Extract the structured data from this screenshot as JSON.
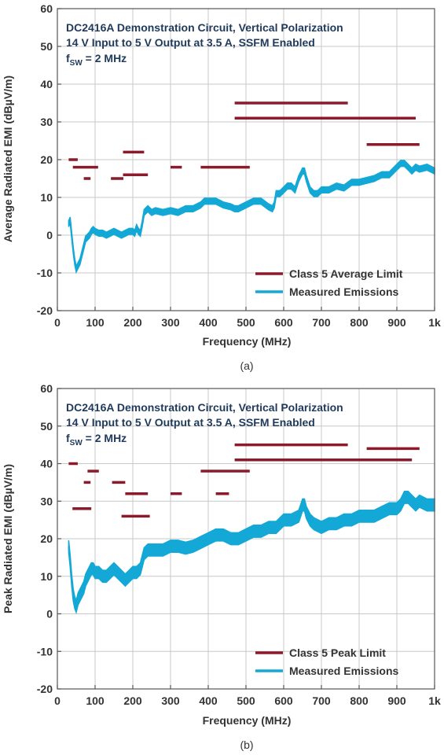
{
  "colors": {
    "limit": "#8b1a2b",
    "measured": "#13a8d6",
    "grid": "#c8c8c8",
    "axis": "#555555"
  },
  "chart_data": [
    {
      "type": "line",
      "caption": "(a)",
      "annotations": [
        "DC2416A Demonstration Circuit, Vertical Polarization",
        "14 V Input to 5 V Output at 3.5 A, SSFM Enabled",
        "f",
        "SW",
        " = 2 MHz"
      ],
      "xlabel": "Frequency (MHz)",
      "ylabel": "Average Radiated EMI (dBµV/m)",
      "xlim": [
        0,
        1000
      ],
      "ylim": [
        -20,
        60
      ],
      "xticks": [
        0,
        100,
        200,
        300,
        400,
        500,
        600,
        700,
        800,
        900,
        1000
      ],
      "xticklabels": [
        "0",
        "100",
        "200",
        "300",
        "400",
        "500",
        "600",
        "700",
        "800",
        "900",
        "1k"
      ],
      "yticks": [
        -20,
        -10,
        0,
        10,
        20,
        30,
        40,
        50,
        60
      ],
      "grid": true,
      "legend": {
        "position": "bottom-right",
        "entries": [
          "Class 5 Average Limit",
          "Measured Emissions"
        ]
      },
      "limit_segments": [
        {
          "x": [
            30,
            54
          ],
          "y": 20
        },
        {
          "x": [
            41,
            108
          ],
          "y": 18
        },
        {
          "x": [
            70,
            88
          ],
          "y": 15
        },
        {
          "x": [
            142,
            175
          ],
          "y": 15
        },
        {
          "x": [
            174,
            240
          ],
          "y": 16
        },
        {
          "x": [
            174,
            230
          ],
          "y": 22
        },
        {
          "x": [
            300,
            330
          ],
          "y": 18
        },
        {
          "x": [
            380,
            510
          ],
          "y": 18
        },
        {
          "x": [
            470,
            770
          ],
          "y": 35
        },
        {
          "x": [
            470,
            950
          ],
          "y": 31
        },
        {
          "x": [
            820,
            960
          ],
          "y": 24
        }
      ],
      "measured": {
        "band": 0.8,
        "x": [
          30,
          34,
          38,
          42,
          46,
          50,
          55,
          60,
          65,
          70,
          75,
          80,
          85,
          90,
          95,
          100,
          110,
          120,
          130,
          140,
          150,
          160,
          170,
          180,
          190,
          200,
          205,
          210,
          215,
          220,
          225,
          230,
          240,
          250,
          260,
          280,
          300,
          320,
          340,
          360,
          380,
          390,
          400,
          420,
          440,
          460,
          470,
          480,
          500,
          520,
          540,
          560,
          570,
          575,
          580,
          590,
          600,
          610,
          620,
          630,
          640,
          650,
          655,
          660,
          670,
          680,
          690,
          700,
          720,
          740,
          760,
          780,
          800,
          820,
          840,
          860,
          880,
          900,
          910,
          920,
          930,
          940,
          950,
          960,
          980,
          1000
        ],
        "y": [
          3,
          4,
          0,
          -4,
          -7,
          -9,
          -8,
          -7,
          -5,
          -3,
          -1,
          -0.5,
          0,
          1,
          1.5,
          1,
          0.5,
          0.5,
          0,
          0.5,
          1,
          0.5,
          0,
          0.5,
          1,
          1,
          0.5,
          2,
          1,
          0.5,
          3,
          6,
          7,
          6,
          6.5,
          6,
          6.5,
          6,
          7,
          7,
          8,
          9,
          9,
          9,
          8,
          7.5,
          7,
          7,
          8,
          9,
          9,
          7.5,
          7,
          8,
          11,
          11,
          12,
          13,
          13,
          12,
          15,
          17,
          17,
          15,
          12,
          11,
          11,
          12,
          12,
          13,
          12.5,
          14,
          14,
          14.5,
          15,
          16,
          16,
          18,
          19,
          19,
          18,
          17,
          18,
          17.5,
          18,
          17
        ]
      }
    },
    {
      "type": "line",
      "caption": "(b)",
      "annotations": [
        "DC2416A Demonstration Circuit, Vertical Polarization",
        "14 V Input to 5 V Output at 3.5 A, SSFM Enabled",
        "f",
        "SW",
        " = 2 MHz"
      ],
      "xlabel": "Frequency (MHz)",
      "ylabel": "Peak Radiated EMI (dBµV/m)",
      "xlim": [
        0,
        1000
      ],
      "ylim": [
        -20,
        60
      ],
      "xticks": [
        0,
        100,
        200,
        300,
        400,
        500,
        600,
        700,
        800,
        900,
        1000
      ],
      "xticklabels": [
        "0",
        "100",
        "200",
        "300",
        "400",
        "500",
        "600",
        "700",
        "800",
        "900",
        "1k"
      ],
      "yticks": [
        -20,
        -10,
        0,
        10,
        20,
        30,
        40,
        50,
        60
      ],
      "grid": true,
      "legend": {
        "position": "bottom-right",
        "entries": [
          "Class 5 Peak Limit",
          "Measured Emissions"
        ]
      },
      "limit_segments": [
        {
          "x": [
            30,
            54
          ],
          "y": 40
        },
        {
          "x": [
            80,
            110
          ],
          "y": 38
        },
        {
          "x": [
            70,
            88
          ],
          "y": 35
        },
        {
          "x": [
            145,
            180
          ],
          "y": 35
        },
        {
          "x": [
            40,
            90
          ],
          "y": 28
        },
        {
          "x": [
            180,
            240
          ],
          "y": 32
        },
        {
          "x": [
            170,
            245
          ],
          "y": 26
        },
        {
          "x": [
            300,
            330
          ],
          "y": 32
        },
        {
          "x": [
            380,
            510
          ],
          "y": 38
        },
        {
          "x": [
            420,
            455
          ],
          "y": 32
        },
        {
          "x": [
            470,
            770
          ],
          "y": 45
        },
        {
          "x": [
            470,
            940
          ],
          "y": 41
        },
        {
          "x": [
            820,
            960
          ],
          "y": 44
        }
      ],
      "measured": {
        "band": 1.6,
        "x": [
          30,
          34,
          38,
          42,
          46,
          50,
          55,
          60,
          65,
          70,
          75,
          80,
          85,
          90,
          95,
          100,
          110,
          120,
          130,
          140,
          150,
          160,
          170,
          180,
          190,
          200,
          210,
          220,
          225,
          230,
          240,
          260,
          280,
          300,
          320,
          340,
          360,
          380,
          400,
          420,
          440,
          460,
          480,
          500,
          520,
          540,
          560,
          580,
          600,
          620,
          640,
          650,
          655,
          660,
          670,
          680,
          700,
          720,
          740,
          760,
          780,
          800,
          820,
          840,
          860,
          880,
          900,
          910,
          920,
          930,
          940,
          950,
          960,
          980,
          1000
        ],
        "y": [
          18,
          14,
          9,
          5,
          3,
          2,
          4,
          5,
          6,
          7,
          9,
          10,
          11,
          12,
          12,
          11,
          11,
          10,
          10,
          11,
          12,
          11,
          10,
          9,
          10,
          11,
          11,
          12,
          14,
          16,
          17,
          17,
          17,
          18,
          18,
          17.5,
          18,
          19,
          20,
          21,
          21,
          20,
          20,
          21,
          22,
          22,
          23,
          23,
          25,
          25,
          26,
          29,
          29,
          27,
          25,
          24,
          23,
          24,
          24,
          25,
          25,
          26,
          26,
          26,
          27,
          28,
          28,
          29,
          31,
          31,
          30,
          29,
          30,
          29,
          29
        ]
      }
    }
  ]
}
